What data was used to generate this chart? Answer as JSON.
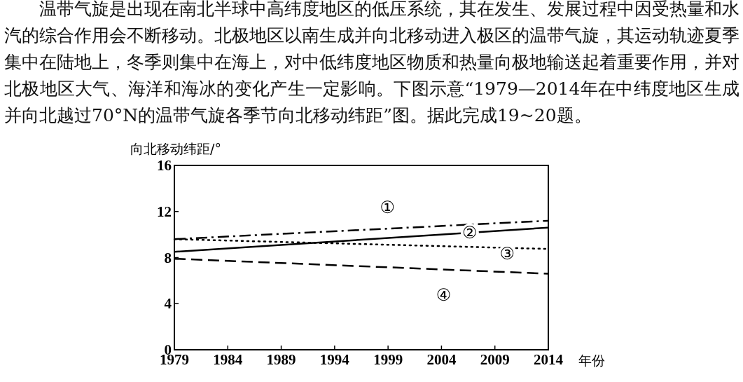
{
  "chart_data": {
    "type": "line",
    "xlabel": "年份",
    "ylabel": "向北移动纬距/°",
    "x": [
      1979,
      2014
    ],
    "series": [
      {
        "name": "①",
        "color": "#000000",
        "line_style": "dashdot",
        "values": [
          9.6,
          11.2
        ]
      },
      {
        "name": "②",
        "color": "#000000",
        "line_style": "solid",
        "values": [
          8.5,
          10.6
        ]
      },
      {
        "name": "③",
        "color": "#000000",
        "line_style": "dotted",
        "values": [
          9.6,
          8.75
        ]
      },
      {
        "name": "④",
        "color": "#000000",
        "line_style": "dashed",
        "values": [
          7.9,
          6.6
        ]
      }
    ],
    "xlim": [
      1979,
      2014
    ],
    "xticks": [
      1979,
      1984,
      1989,
      1994,
      1999,
      2004,
      2009,
      2014
    ],
    "ylim": [
      0,
      16
    ],
    "yticks": [
      0,
      4,
      8,
      12,
      16
    ],
    "grid": false,
    "marker": "none",
    "annotations": [
      "温带气旋是出现在南北半球中高纬度地区的低压系统，其在发生、发展过程中因受热量和水汽的综合作用会不断移动。北极地区以南生成并向北移动进入极区的温带气旋，其运动轨迹夏季集中在陆地上，冬季则集中在海上，对中低纬度地区物质和热量向极地输送起着重要作用，并对北极地区大气、海洋和海冰的变化产生一定影响。下图示意“1979—2014年在中纬度地区生成并向北越过70°N的温带气旋各季节向北移动纬距”图。据此完成19~20题。"
    ]
  }
}
